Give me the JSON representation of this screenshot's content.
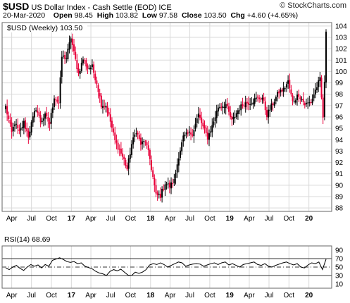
{
  "header": {
    "symbol": "$USD",
    "name": "US Dollar Index - Cash Settle (EOD)",
    "exchange": "ICE",
    "date": "20-Mar-2020",
    "open_label": "Open",
    "open": "98.45",
    "high_label": "High",
    "high": "103.82",
    "low_label": "Low",
    "low": "97.58",
    "close_label": "Close",
    "close": "103.50",
    "chg_label": "Chg",
    "chg": "+4.60 (+4.65%)",
    "brand": "© StockCharts.com"
  },
  "colors": {
    "up": "#000000",
    "down": "#e8003a",
    "grid": "#d9d9d9",
    "rsi_line": "#000000"
  },
  "chart_data": [
    {
      "type": "candlestick",
      "legend": "$USD (Weekly) 103.50",
      "timeframe": "Weekly",
      "x_tick_labels": [
        "Apr",
        "Jul",
        "Oct",
        "17",
        "Apr",
        "Jul",
        "Oct",
        "18",
        "Apr",
        "Jul",
        "Oct",
        "19",
        "Apr",
        "Jul",
        "Oct",
        "20"
      ],
      "y_ticks": [
        88,
        89,
        90,
        91,
        92,
        93,
        94,
        95,
        96,
        97,
        98,
        99,
        100,
        101,
        102,
        103,
        104
      ],
      "ylim": [
        87.7,
        104.3
      ],
      "grid": true,
      "x_start": "2016-03-04",
      "close_series": [
        {
          "x": "2016-03-04",
          "close": 96.9
        },
        {
          "x": "2016-04-01",
          "close": 94.6
        },
        {
          "x": "2016-04-15",
          "close": 95.5
        },
        {
          "x": "2016-05-06",
          "close": 94.6
        },
        {
          "x": "2016-05-27",
          "close": 95.5
        },
        {
          "x": "2016-06-17",
          "close": 94.3
        },
        {
          "x": "2016-07-01",
          "close": 95.4
        },
        {
          "x": "2016-07-22",
          "close": 96.8
        },
        {
          "x": "2016-08-12",
          "close": 95.6
        },
        {
          "x": "2016-09-02",
          "close": 96.1
        },
        {
          "x": "2016-09-23",
          "close": 95.4
        },
        {
          "x": "2016-10-14",
          "close": 97.8
        },
        {
          "x": "2016-11-04",
          "close": 97.2
        },
        {
          "x": "2016-11-18",
          "close": 101.3
        },
        {
          "x": "2016-12-09",
          "close": 101.2
        },
        {
          "x": "2016-12-30",
          "close": 103.0
        },
        {
          "x": "2017-01-13",
          "close": 101.6
        },
        {
          "x": "2017-02-03",
          "close": 99.8
        },
        {
          "x": "2017-02-24",
          "close": 101.1
        },
        {
          "x": "2017-03-17",
          "close": 100.3
        },
        {
          "x": "2017-04-07",
          "close": 100.4
        },
        {
          "x": "2017-04-28",
          "close": 99.0
        },
        {
          "x": "2017-05-19",
          "close": 97.1
        },
        {
          "x": "2017-06-09",
          "close": 97.0
        },
        {
          "x": "2017-06-30",
          "close": 95.6
        },
        {
          "x": "2017-07-21",
          "close": 93.9
        },
        {
          "x": "2017-08-11",
          "close": 93.1
        },
        {
          "x": "2017-09-01",
          "close": 92.2
        },
        {
          "x": "2017-09-15",
          "close": 91.4
        },
        {
          "x": "2017-10-06",
          "close": 93.6
        },
        {
          "x": "2017-10-27",
          "close": 94.8
        },
        {
          "x": "2017-11-17",
          "close": 93.6
        },
        {
          "x": "2017-12-08",
          "close": 93.9
        },
        {
          "x": "2017-12-29",
          "close": 92.3
        },
        {
          "x": "2018-01-26",
          "close": 89.1
        },
        {
          "x": "2018-02-16",
          "close": 89.1
        },
        {
          "x": "2018-03-09",
          "close": 90.2
        },
        {
          "x": "2018-03-30",
          "close": 89.9
        },
        {
          "x": "2018-04-20",
          "close": 90.4
        },
        {
          "x": "2018-05-11",
          "close": 92.6
        },
        {
          "x": "2018-06-01",
          "close": 94.2
        },
        {
          "x": "2018-06-22",
          "close": 94.5
        },
        {
          "x": "2018-07-13",
          "close": 94.6
        },
        {
          "x": "2018-08-10",
          "close": 96.2
        },
        {
          "x": "2018-08-31",
          "close": 95.1
        },
        {
          "x": "2018-09-21",
          "close": 94.2
        },
        {
          "x": "2018-10-12",
          "close": 95.2
        },
        {
          "x": "2018-11-09",
          "close": 96.9
        },
        {
          "x": "2018-12-14",
          "close": 97.1
        },
        {
          "x": "2019-01-11",
          "close": 95.6
        },
        {
          "x": "2019-02-08",
          "close": 96.6
        },
        {
          "x": "2019-03-08",
          "close": 97.2
        },
        {
          "x": "2019-04-05",
          "close": 97.3
        },
        {
          "x": "2019-05-03",
          "close": 97.6
        },
        {
          "x": "2019-05-31",
          "close": 97.7
        },
        {
          "x": "2019-06-21",
          "close": 96.2
        },
        {
          "x": "2019-07-19",
          "close": 97.2
        },
        {
          "x": "2019-08-16",
          "close": 98.2
        },
        {
          "x": "2019-09-06",
          "close": 98.4
        },
        {
          "x": "2019-09-27",
          "close": 99.1
        },
        {
          "x": "2019-10-18",
          "close": 97.3
        },
        {
          "x": "2019-11-15",
          "close": 98.0
        },
        {
          "x": "2019-12-13",
          "close": 97.1
        },
        {
          "x": "2020-01-10",
          "close": 97.3
        },
        {
          "x": "2020-02-07",
          "close": 98.7
        },
        {
          "x": "2020-02-21",
          "close": 99.3
        },
        {
          "x": "2020-03-06",
          "close": 96.0
        },
        {
          "x": "2020-03-13",
          "close": 98.9
        },
        {
          "x": "2020-03-20",
          "close": 103.5
        }
      ]
    },
    {
      "type": "line",
      "legend": "RSI(14) 68.69",
      "y_ticks": [
        10,
        30,
        50,
        70,
        90
      ],
      "ylim": [
        0,
        100
      ],
      "reference_lines": [
        30,
        50,
        70
      ],
      "series": [
        {
          "values": [
            48,
            44,
            50,
            54,
            47,
            42,
            50,
            56,
            52,
            55,
            48,
            56,
            52,
            66,
            69,
            72,
            68,
            63,
            61,
            63,
            58,
            60,
            52,
            49,
            46,
            40,
            36,
            34,
            30,
            40,
            44,
            41,
            45,
            38,
            31,
            30,
            38,
            35,
            38,
            44,
            55,
            58,
            56,
            60,
            56,
            50,
            54,
            58,
            62,
            60,
            52,
            55,
            57,
            58,
            57,
            52,
            55,
            58,
            60,
            56,
            60,
            62,
            55,
            58,
            54,
            50,
            56,
            58,
            60,
            62,
            56,
            54,
            58,
            52,
            50,
            54,
            57,
            60,
            62,
            58,
            55,
            58,
            50,
            48,
            55,
            60,
            58,
            62,
            44,
            68.69
          ]
        }
      ]
    }
  ]
}
